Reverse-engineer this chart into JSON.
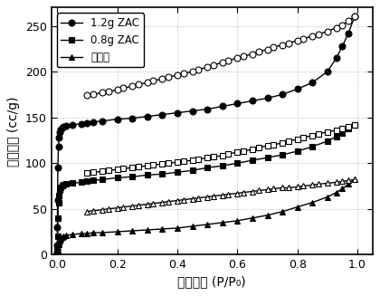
{
  "title": "",
  "xlabel": "相对压力 (P/P₀)",
  "ylabel": "吸附容积 (cc/g)",
  "xlim": [
    -0.02,
    1.05
  ],
  "ylim": [
    0,
    270
  ],
  "yticks": [
    0,
    50,
    100,
    150,
    200,
    250
  ],
  "xticks": [
    0.0,
    0.2,
    0.4,
    0.6,
    0.8,
    1.0
  ],
  "legend_labels": [
    "1.2g ZAC",
    "0.8g ZAC",
    "纤维素"
  ],
  "background_color": "#ffffff",
  "series": {
    "zac12": {
      "adsorption_x": [
        0.0001,
        0.0003,
        0.0006,
        0.001,
        0.002,
        0.004,
        0.006,
        0.009,
        0.012,
        0.016,
        0.02,
        0.03,
        0.05,
        0.08,
        0.1,
        0.12,
        0.15,
        0.2,
        0.25,
        0.3,
        0.35,
        0.4,
        0.45,
        0.5,
        0.55,
        0.6,
        0.65,
        0.7,
        0.75,
        0.8,
        0.85,
        0.9,
        0.93,
        0.95,
        0.97,
        0.99
      ],
      "adsorption_y": [
        2,
        10,
        30,
        60,
        95,
        118,
        128,
        134,
        137,
        139,
        140,
        141,
        142,
        143,
        144,
        145,
        146,
        148,
        149,
        151,
        153,
        155,
        157,
        159,
        162,
        165,
        168,
        171,
        175,
        181,
        188,
        200,
        215,
        228,
        242,
        260
      ],
      "desorption_x": [
        0.99,
        0.97,
        0.95,
        0.93,
        0.9,
        0.87,
        0.85,
        0.82,
        0.8,
        0.77,
        0.75,
        0.72,
        0.7,
        0.67,
        0.65,
        0.62,
        0.6,
        0.57,
        0.55,
        0.52,
        0.5,
        0.47,
        0.45,
        0.42,
        0.4,
        0.37,
        0.35,
        0.32,
        0.3,
        0.27,
        0.25,
        0.22,
        0.2,
        0.17,
        0.15,
        0.12,
        0.1
      ],
      "desorption_y": [
        260,
        255,
        251,
        248,
        244,
        241,
        239,
        236,
        234,
        231,
        229,
        227,
        224,
        222,
        219,
        217,
        215,
        212,
        210,
        207,
        205,
        202,
        200,
        198,
        196,
        194,
        192,
        190,
        188,
        186,
        184,
        182,
        180,
        178,
        177,
        175,
        174
      ],
      "marker_ads": "o",
      "marker_des": "o",
      "markersize_ads": 5,
      "markersize_des": 5
    },
    "zac08": {
      "adsorption_x": [
        0.0001,
        0.0003,
        0.0006,
        0.001,
        0.002,
        0.004,
        0.006,
        0.009,
        0.012,
        0.016,
        0.02,
        0.03,
        0.05,
        0.08,
        0.1,
        0.12,
        0.15,
        0.2,
        0.25,
        0.3,
        0.35,
        0.4,
        0.45,
        0.5,
        0.55,
        0.6,
        0.65,
        0.7,
        0.75,
        0.8,
        0.85,
        0.9,
        0.93,
        0.95,
        0.97,
        0.99
      ],
      "adsorption_y": [
        0,
        2,
        8,
        20,
        40,
        57,
        65,
        70,
        73,
        75,
        76,
        77,
        78,
        79,
        80,
        81,
        82,
        84,
        85,
        87,
        88,
        90,
        92,
        95,
        97,
        100,
        103,
        106,
        109,
        113,
        118,
        124,
        129,
        133,
        138,
        142
      ],
      "desorption_x": [
        0.99,
        0.97,
        0.95,
        0.93,
        0.9,
        0.87,
        0.85,
        0.82,
        0.8,
        0.77,
        0.75,
        0.72,
        0.7,
        0.67,
        0.65,
        0.62,
        0.6,
        0.57,
        0.55,
        0.52,
        0.5,
        0.47,
        0.45,
        0.42,
        0.4,
        0.37,
        0.35,
        0.32,
        0.3,
        0.27,
        0.25,
        0.22,
        0.2,
        0.17,
        0.15,
        0.12,
        0.1
      ],
      "desorption_y": [
        142,
        140,
        138,
        136,
        134,
        132,
        130,
        128,
        126,
        124,
        122,
        120,
        119,
        117,
        115,
        113,
        112,
        110,
        108,
        107,
        106,
        104,
        103,
        102,
        101,
        100,
        99,
        98,
        97,
        96,
        95,
        94,
        93,
        92,
        91,
        90,
        89
      ],
      "marker_ads": "s",
      "marker_des": "s",
      "markersize_ads": 5,
      "markersize_des": 5
    },
    "cellulose": {
      "adsorption_x": [
        0.0001,
        0.0003,
        0.0006,
        0.001,
        0.002,
        0.004,
        0.006,
        0.009,
        0.012,
        0.016,
        0.02,
        0.03,
        0.05,
        0.08,
        0.1,
        0.12,
        0.15,
        0.2,
        0.25,
        0.3,
        0.35,
        0.4,
        0.45,
        0.5,
        0.55,
        0.6,
        0.65,
        0.7,
        0.75,
        0.8,
        0.85,
        0.9,
        0.93,
        0.95,
        0.97,
        0.99
      ],
      "adsorption_y": [
        0,
        1,
        3,
        5,
        8,
        11,
        13,
        15,
        17,
        19,
        20,
        21,
        22,
        23,
        23,
        24,
        24,
        25,
        26,
        27,
        28,
        29,
        31,
        33,
        35,
        37,
        40,
        43,
        47,
        52,
        57,
        63,
        68,
        72,
        77,
        82
      ],
      "desorption_x": [
        0.99,
        0.97,
        0.95,
        0.93,
        0.9,
        0.87,
        0.85,
        0.82,
        0.8,
        0.77,
        0.75,
        0.72,
        0.7,
        0.67,
        0.65,
        0.62,
        0.6,
        0.57,
        0.55,
        0.52,
        0.5,
        0.47,
        0.45,
        0.42,
        0.4,
        0.37,
        0.35,
        0.32,
        0.3,
        0.27,
        0.25,
        0.22,
        0.2,
        0.17,
        0.15,
        0.12,
        0.1
      ],
      "desorption_y": [
        82,
        81,
        80,
        79,
        78,
        77,
        76,
        75,
        74,
        73,
        73,
        72,
        71,
        70,
        69,
        68,
        67,
        66,
        65,
        64,
        63,
        62,
        61,
        60,
        59,
        58,
        57,
        56,
        55,
        54,
        53,
        52,
        51,
        50,
        49,
        48,
        47
      ],
      "marker_ads": "^",
      "marker_des": "^",
      "markersize_ads": 5,
      "markersize_des": 5
    }
  }
}
